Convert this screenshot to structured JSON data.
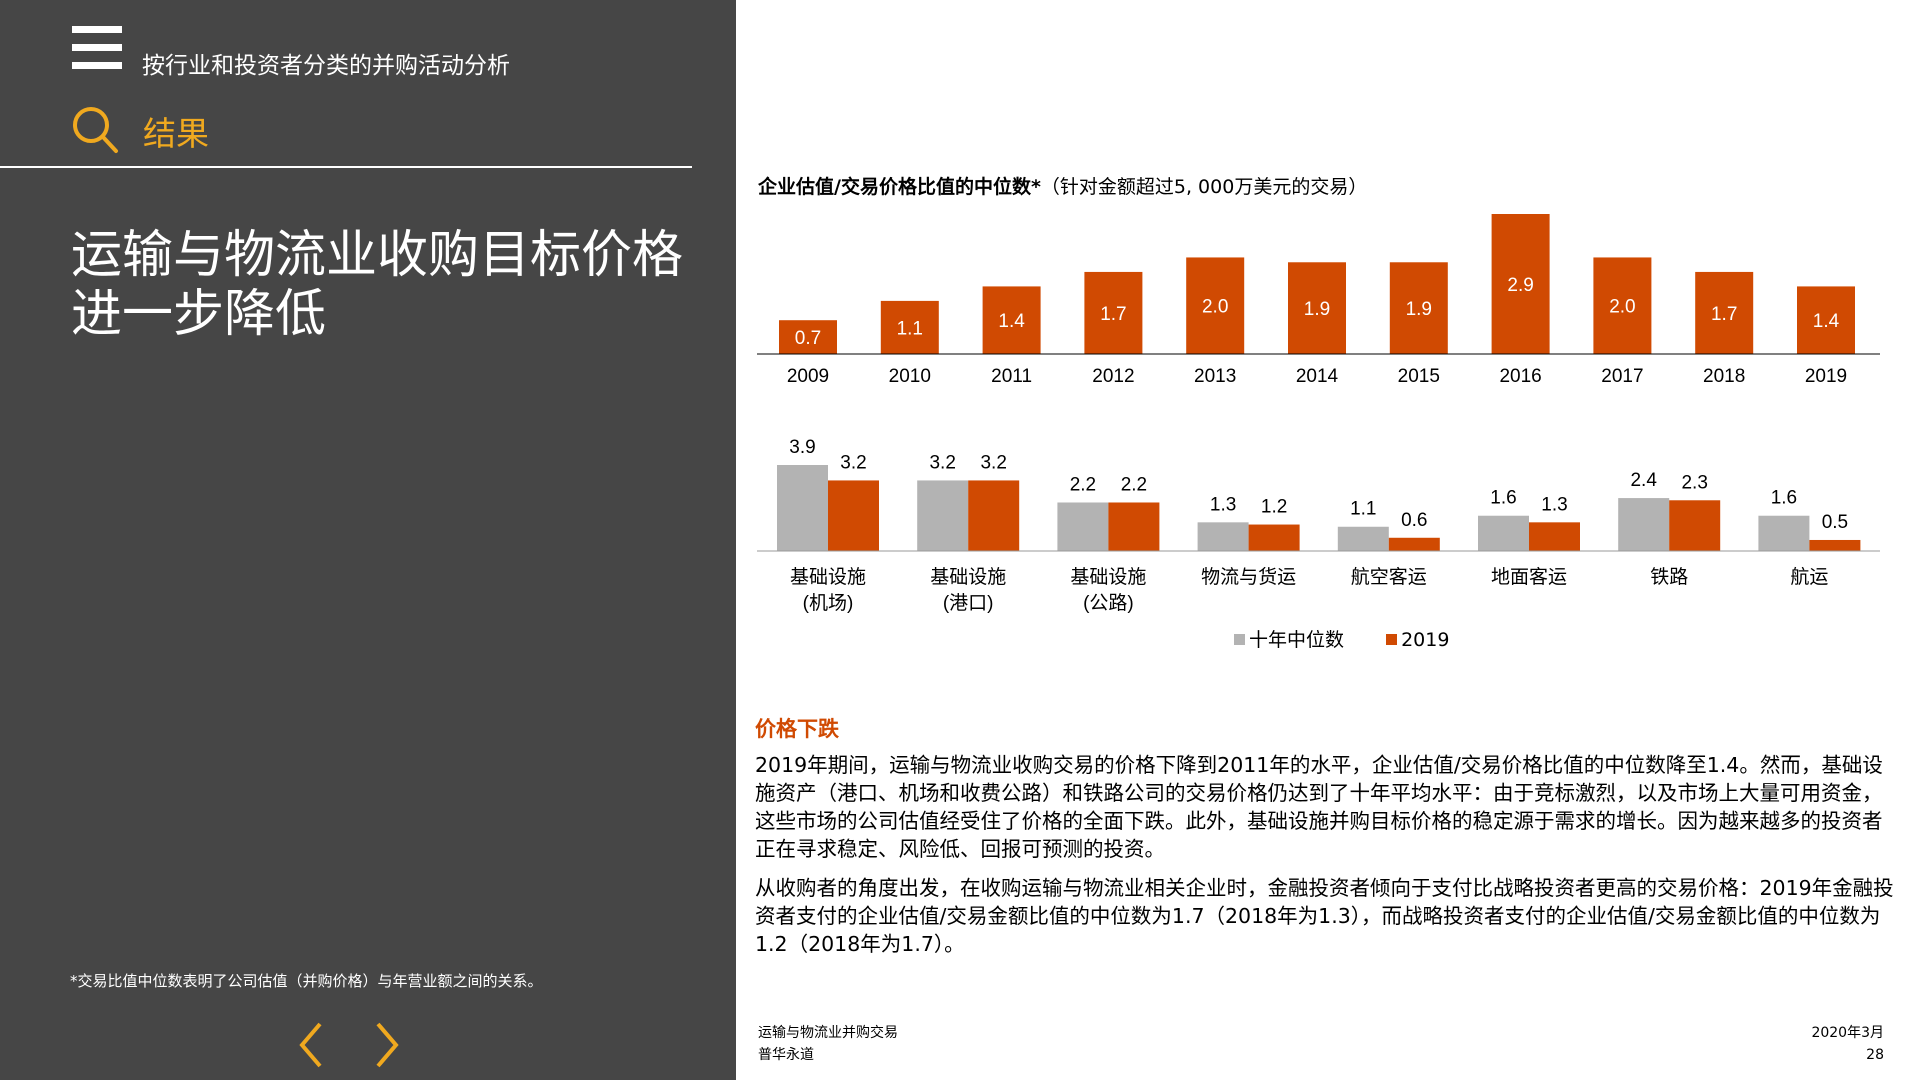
{
  "header": {
    "title": "按行业和投资者分类的并购活动分析",
    "section": "结果"
  },
  "heading": "运输与物流业收购目标价格进一步降低",
  "footnote": "*交易比值中位数表明了公司估值（并购价格）与年营业额之间的关系。",
  "colors": {
    "sidebar": "#464646",
    "accent": "#f0a91f",
    "orange": "#d04a02",
    "grey": "#b3b3b3"
  },
  "icons": {
    "menu": "menu-icon",
    "search": "search-icon",
    "prev": "chevron-left-icon",
    "next": "chevron-right-icon"
  },
  "chart_title": {
    "bold": "企业估值/交易价格比值的中位数*",
    "normal": "（针对金额超过5, 000万美元的交易）"
  },
  "chart_data": [
    {
      "type": "bar",
      "title": "企业估值/交易价格比值的中位数*（针对金额超过5, 000万美元的交易）",
      "categories": [
        "2009",
        "2010",
        "2011",
        "2012",
        "2013",
        "2014",
        "2015",
        "2016",
        "2017",
        "2018",
        "2019"
      ],
      "values": [
        0.7,
        1.1,
        1.4,
        1.7,
        2.0,
        1.9,
        1.9,
        2.9,
        2.0,
        1.7,
        1.4
      ],
      "labels": [
        "0.7",
        "1.1",
        "1.4",
        "1.7",
        "2.0",
        "1.9",
        "1.9",
        "2.9",
        "2.0",
        "1.7",
        "1.4"
      ],
      "color": "#d04a02",
      "ylim": [
        0,
        2.9
      ]
    },
    {
      "type": "bar",
      "categories": [
        [
          "基础设施",
          "(机场)"
        ],
        [
          "基础设施",
          "(港口)"
        ],
        [
          "基础设施",
          "(公路)"
        ],
        [
          "物流与货运"
        ],
        [
          "航空客运"
        ],
        [
          "地面客运"
        ],
        [
          "铁路"
        ],
        [
          "航运"
        ]
      ],
      "series": [
        {
          "name": "十年中位数",
          "color": "#b3b3b3",
          "values": [
            3.9,
            3.2,
            2.2,
            1.3,
            1.1,
            1.6,
            2.4,
            1.6
          ]
        },
        {
          "name": "2019",
          "color": "#d04a02",
          "values": [
            3.2,
            3.2,
            2.2,
            1.2,
            0.6,
            1.3,
            2.3,
            0.5
          ]
        }
      ],
      "legend": "bottom",
      "ylim": [
        0,
        3.9
      ]
    }
  ],
  "body": {
    "subhead": "价格下跌",
    "para1": "2019年期间，运输与物流业收购交易的价格下降到2011年的水平，企业估值/交易价格比值的中位数降至1.4。然而，基础设施资产（港口、机场和收费公路）和铁路公司的交易价格仍达到了十年平均水平：由于竞标激烈，以及市场上大量可用资金，这些市场的公司估值经受住了价格的全面下跌。此外，基础设施并购目标价格的稳定源于需求的增长。因为越来越多的投资者正在寻求稳定、风险低、回报可预测的投资。",
    "para2": "从收购者的角度出发，在收购运输与物流业相关企业时，金融投资者倾向于支付比战略投资者更高的交易价格：2019年金融投资者支付的企业估值/交易金额比值的中位数为1.7（2018年为1.3），而战略投资者支付的企业估值/交易金额比值的中位数为1.2（2018年为1.7）。"
  },
  "footer": {
    "left1": "运输与物流业并购交易",
    "left2": "普华永道",
    "right1": "2020年3月",
    "right2": "28"
  }
}
